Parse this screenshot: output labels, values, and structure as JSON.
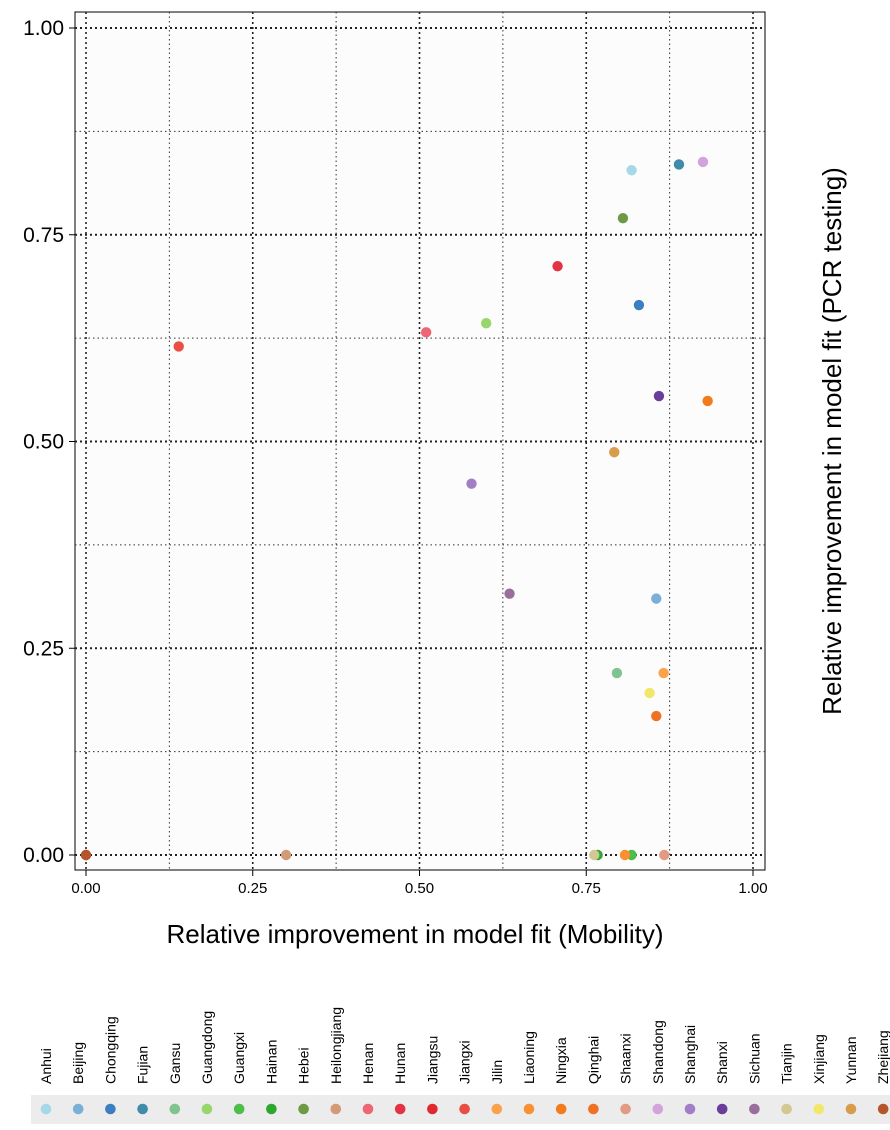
{
  "chart_data": {
    "type": "scatter",
    "xlabel": "Relative improvement in model fit (Mobility)",
    "ylabel": "Relative improvement in model fit (PCR testing)",
    "xlim": [
      0,
      1
    ],
    "ylim": [
      0,
      1
    ],
    "x_ticks": [
      "0.00",
      "0.25",
      "0.50",
      "0.75",
      "1.00"
    ],
    "y_ticks": [
      "0.00",
      "0.25",
      "0.50",
      "0.75",
      "1.00"
    ],
    "grid": true,
    "legend_position": "bottom",
    "series": [
      {
        "name": "Anhui",
        "color": "#a6d8ea",
        "x": 0.818,
        "y": 0.828
      },
      {
        "name": "Beijing",
        "color": "#7bb0d6",
        "x": 0.855,
        "y": 0.31
      },
      {
        "name": "Chongqing",
        "color": "#3b7fc0",
        "x": 0.829,
        "y": 0.665
      },
      {
        "name": "Fujian",
        "color": "#3f8ba8",
        "x": 0.889,
        "y": 0.835
      },
      {
        "name": "Gansu",
        "color": "#7fc38f",
        "x": 0.796,
        "y": 0.22
      },
      {
        "name": "Guangdong",
        "color": "#97d56d",
        "x": 0.6,
        "y": 0.643
      },
      {
        "name": "Guangxi",
        "color": "#4fbd4a",
        "x": 0.818,
        "y": 0.0
      },
      {
        "name": "Hainan",
        "color": "#2ea72e",
        "x": 0.767,
        "y": 0.0
      },
      {
        "name": "Hebei",
        "color": "#6f9a45",
        "x": 0.805,
        "y": 0.77
      },
      {
        "name": "Heilongjiang",
        "color": "#d49a78",
        "x": 0.3,
        "y": 0.0
      },
      {
        "name": "Henan",
        "color": "#ed6676",
        "x": 0.51,
        "y": 0.632
      },
      {
        "name": "Hunan",
        "color": "#e23343",
        "x": 0.707,
        "y": 0.712
      },
      {
        "name": "Jiangsu",
        "color": "#e0282e",
        "x": 0.0,
        "y": 0.0
      },
      {
        "name": "Jiangxi",
        "color": "#e94e44",
        "x": 0.139,
        "y": 0.615
      },
      {
        "name": "Jilin",
        "color": "#fba24c",
        "x": 0.866,
        "y": 0.22
      },
      {
        "name": "Liaoning",
        "color": "#f99032",
        "x": 0.808,
        "y": 0.0
      },
      {
        "name": "Ningxia",
        "color": "#f27b1c",
        "x": 0.932,
        "y": 0.549
      },
      {
        "name": "Qinghai",
        "color": "#ef7224",
        "x": 0.855,
        "y": 0.168
      },
      {
        "name": "Shaanxi",
        "color": "#e19b85",
        "x": 0.867,
        "y": 0.0
      },
      {
        "name": "Shandong",
        "color": "#d3a4db",
        "x": 0.925,
        "y": 0.838
      },
      {
        "name": "Shanghai",
        "color": "#a37ec8",
        "x": 0.578,
        "y": 0.449
      },
      {
        "name": "Shanxi",
        "color": "#6a3d9a",
        "x": 0.859,
        "y": 0.555
      },
      {
        "name": "Sichuan",
        "color": "#9a6e9c",
        "x": 0.635,
        "y": 0.316
      },
      {
        "name": "Tianjin",
        "color": "#d2c894",
        "x": 0.762,
        "y": 0.0
      },
      {
        "name": "Xinjiang",
        "color": "#f1e86b",
        "x": 0.845,
        "y": 0.196
      },
      {
        "name": "Yunnan",
        "color": "#d89c4a",
        "x": 0.792,
        "y": 0.487
      },
      {
        "name": "Zhejiang",
        "color": "#b5552a",
        "x": 0.0,
        "y": 0.0
      }
    ]
  }
}
